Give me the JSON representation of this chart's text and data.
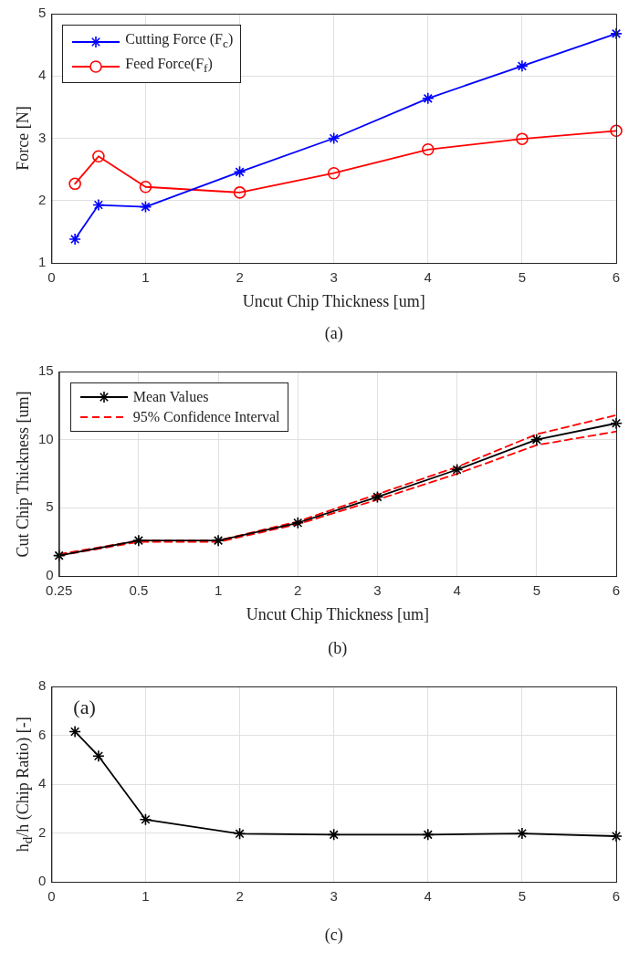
{
  "chart_data": [
    {
      "type": "line",
      "xlabel": "Uncut Chip Thickness [um]",
      "ylabel": "Force [N]",
      "x": [
        0.25,
        0.5,
        1,
        2,
        3,
        4,
        5,
        6
      ],
      "series": [
        {
          "name": "Cutting Force (F$_{c}$)",
          "color": "#0000ff",
          "marker": "cross",
          "values": [
            1.38,
            1.93,
            1.9,
            2.46,
            3.0,
            3.64,
            4.16,
            4.68
          ]
        },
        {
          "name": "Feed Force(F$_{f}$)",
          "color": "#ff0000",
          "marker": "circle",
          "values": [
            2.27,
            2.71,
            2.22,
            2.13,
            2.44,
            2.82,
            2.99,
            3.12
          ]
        }
      ],
      "xlim": [
        0,
        6
      ],
      "xticks": [
        0,
        1,
        2,
        3,
        4,
        5,
        6
      ],
      "ylim": [
        1,
        5
      ],
      "yticks": [
        1,
        2,
        3,
        4,
        5
      ],
      "grid": true,
      "legend": "top left",
      "line_style": "solid",
      "annotations": [
        "(a)"
      ]
    },
    {
      "type": "line",
      "xlabel": "Uncut Chip Thickness [um]",
      "ylabel": "Cut Chip Thickness [um]",
      "categories": [
        "0.25",
        "0.5",
        "1",
        "2",
        "3",
        "4",
        "5",
        "6"
      ],
      "series": [
        {
          "name": "Mean Values",
          "color": "#000000",
          "marker": "cross",
          "line_style": "solid",
          "values": [
            1.5,
            2.6,
            2.6,
            3.9,
            5.8,
            7.8,
            10.0,
            11.2
          ]
        },
        {
          "name": "95% Confidence Interval",
          "color": "#ff0000",
          "marker": "none",
          "line_style": "dashed",
          "values": [
            1.6,
            2.6,
            2.6,
            4.0,
            6.0,
            8.0,
            10.4,
            11.8
          ]
        },
        {
          "color": "#ff0000",
          "marker": "none",
          "line_style": "dashed",
          "values": [
            1.5,
            2.5,
            2.5,
            3.8,
            5.6,
            7.5,
            9.6,
            10.6
          ]
        }
      ],
      "ylim": [
        0,
        15
      ],
      "yticks": [
        0,
        5,
        10,
        15
      ],
      "grid": true,
      "legend": "top left",
      "annotations": [
        "(b)"
      ]
    },
    {
      "type": "line",
      "ylabel": "h$_{d}$/h (Chip Ratio) [-]",
      "x": [
        0.25,
        0.5,
        1,
        2,
        3,
        4,
        5,
        6
      ],
      "series": [
        {
          "color": "#000000",
          "marker": "cross",
          "values": [
            6.15,
            5.15,
            2.55,
            1.97,
            1.93,
            1.93,
            1.98,
            1.87
          ]
        }
      ],
      "xlim": [
        0,
        6
      ],
      "xticks": [
        0,
        1,
        2,
        3,
        4,
        5,
        6
      ],
      "ylim": [
        0,
        8
      ],
      "yticks": [
        0,
        2,
        4,
        6,
        8
      ],
      "grid": true,
      "line_style": "solid",
      "annotations": [
        "(a)",
        "(c)"
      ]
    }
  ]
}
